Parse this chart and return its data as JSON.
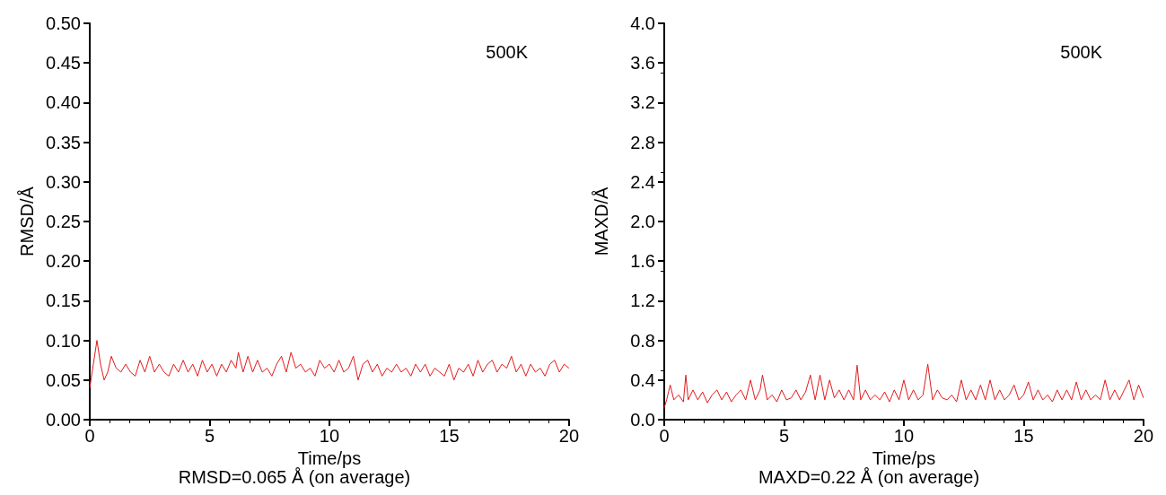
{
  "chart_data": [
    {
      "type": "line",
      "xlabel": "Time/ps",
      "ylabel": "RMSD/Å",
      "annotations": [
        "500K",
        "RMSD=0.065 Å (on average)"
      ],
      "xlim": [
        0,
        20
      ],
      "xticks": [
        0,
        5,
        10,
        15,
        20
      ],
      "ylim": [
        0,
        0.5
      ],
      "yticks": [
        {
          "value": 0,
          "label": "0.00"
        },
        {
          "value": 0.05,
          "label": "0.05"
        },
        {
          "value": 0.1,
          "label": "0.10"
        },
        {
          "value": 0.15,
          "label": "0.15"
        },
        {
          "value": 0.2,
          "label": "0.20"
        },
        {
          "value": 0.25,
          "label": "0.25"
        },
        {
          "value": 0.3,
          "label": "0.30"
        },
        {
          "value": 0.35,
          "label": "0.35"
        },
        {
          "value": 0.4,
          "label": "0.40"
        },
        {
          "value": 0.45,
          "label": "0.45"
        },
        {
          "value": 0.5,
          "label": "0.50"
        }
      ],
      "marker": "none",
      "line_style": "solid",
      "series": [
        {
          "color": "#e31a1c",
          "x": [
            0,
            0.15,
            0.3,
            0.45,
            0.6,
            0.75,
            0.9,
            1.1,
            1.3,
            1.5,
            1.7,
            1.9,
            2.1,
            2.3,
            2.5,
            2.7,
            2.9,
            3.1,
            3.3,
            3.5,
            3.7,
            3.9,
            4.1,
            4.3,
            4.5,
            4.7,
            4.9,
            5.1,
            5.3,
            5.5,
            5.7,
            5.9,
            6.1,
            6.2,
            6.4,
            6.6,
            6.8,
            7.0,
            7.2,
            7.4,
            7.6,
            7.8,
            8.0,
            8.2,
            8.4,
            8.6,
            8.8,
            9.0,
            9.2,
            9.4,
            9.6,
            9.8,
            10.0,
            10.2,
            10.4,
            10.6,
            10.8,
            11.0,
            11.2,
            11.4,
            11.6,
            11.8,
            12.0,
            12.2,
            12.4,
            12.6,
            12.8,
            13.0,
            13.2,
            13.4,
            13.6,
            13.8,
            14.0,
            14.2,
            14.4,
            14.6,
            14.8,
            15.0,
            15.2,
            15.4,
            15.6,
            15.8,
            16.0,
            16.2,
            16.4,
            16.6,
            16.8,
            17.0,
            17.2,
            17.4,
            17.6,
            17.8,
            18.0,
            18.2,
            18.4,
            18.6,
            18.8,
            19.0,
            19.2,
            19.4,
            19.6,
            19.8,
            20.0
          ],
          "values": [
            0.04,
            0.07,
            0.1,
            0.07,
            0.05,
            0.06,
            0.08,
            0.065,
            0.06,
            0.07,
            0.06,
            0.055,
            0.075,
            0.06,
            0.08,
            0.06,
            0.07,
            0.06,
            0.055,
            0.07,
            0.06,
            0.075,
            0.06,
            0.07,
            0.055,
            0.075,
            0.06,
            0.07,
            0.055,
            0.07,
            0.06,
            0.075,
            0.065,
            0.085,
            0.06,
            0.08,
            0.06,
            0.075,
            0.06,
            0.065,
            0.055,
            0.07,
            0.08,
            0.06,
            0.085,
            0.065,
            0.07,
            0.06,
            0.065,
            0.055,
            0.075,
            0.065,
            0.07,
            0.06,
            0.075,
            0.06,
            0.065,
            0.08,
            0.05,
            0.07,
            0.075,
            0.06,
            0.07,
            0.055,
            0.065,
            0.06,
            0.07,
            0.06,
            0.065,
            0.055,
            0.07,
            0.06,
            0.07,
            0.055,
            0.065,
            0.06,
            0.055,
            0.07,
            0.05,
            0.065,
            0.06,
            0.07,
            0.055,
            0.075,
            0.06,
            0.07,
            0.075,
            0.06,
            0.07,
            0.065,
            0.08,
            0.06,
            0.07,
            0.055,
            0.07,
            0.06,
            0.065,
            0.055,
            0.07,
            0.075,
            0.06,
            0.07,
            0.065
          ]
        }
      ]
    },
    {
      "type": "line",
      "xlabel": "Time/ps",
      "ylabel": "MAXD/Å",
      "annotations": [
        "500K",
        "MAXD=0.22 Å (on average)"
      ],
      "xlim": [
        0,
        20
      ],
      "xticks": [
        0,
        5,
        10,
        15,
        20
      ],
      "ylim": [
        0,
        4
      ],
      "yticks": [
        {
          "value": 0,
          "label": "0.0"
        },
        {
          "value": 0.4,
          "label": "0.4"
        },
        {
          "value": 0.8,
          "label": "0.8"
        },
        {
          "value": 1.2,
          "label": "1.2"
        },
        {
          "value": 1.6,
          "label": "1.6"
        },
        {
          "value": 2,
          "label": "2.0"
        },
        {
          "value": 2.4,
          "label": "2.4"
        },
        {
          "value": 2.8,
          "label": "2.8"
        },
        {
          "value": 3.2,
          "label": "3.2"
        },
        {
          "value": 3.6,
          "label": "3.6"
        },
        {
          "value": 4,
          "label": "4.0"
        }
      ],
      "marker": "none",
      "line_style": "solid",
      "series": [
        {
          "color": "#e31a1c",
          "x": [
            0,
            0.1,
            0.25,
            0.4,
            0.6,
            0.8,
            0.9,
            1.0,
            1.2,
            1.4,
            1.6,
            1.8,
            2.0,
            2.2,
            2.4,
            2.6,
            2.8,
            3.0,
            3.2,
            3.4,
            3.6,
            3.8,
            4.0,
            4.1,
            4.3,
            4.5,
            4.7,
            4.9,
            5.1,
            5.3,
            5.5,
            5.7,
            5.9,
            6.1,
            6.3,
            6.5,
            6.7,
            6.9,
            7.1,
            7.3,
            7.5,
            7.7,
            7.9,
            8.05,
            8.2,
            8.4,
            8.6,
            8.8,
            9.0,
            9.2,
            9.4,
            9.6,
            9.8,
            10.0,
            10.2,
            10.4,
            10.6,
            10.8,
            11.0,
            11.2,
            11.4,
            11.6,
            11.8,
            12.0,
            12.2,
            12.4,
            12.6,
            12.8,
            13.0,
            13.2,
            13.4,
            13.6,
            13.8,
            14.0,
            14.2,
            14.4,
            14.6,
            14.8,
            15.0,
            15.2,
            15.4,
            15.6,
            15.8,
            16.0,
            16.2,
            16.4,
            16.6,
            16.8,
            17.0,
            17.2,
            17.4,
            17.6,
            17.8,
            18.0,
            18.2,
            18.4,
            18.6,
            18.8,
            19.0,
            19.2,
            19.4,
            19.6,
            19.8,
            20.0
          ],
          "values": [
            0.12,
            0.2,
            0.35,
            0.2,
            0.25,
            0.18,
            0.45,
            0.2,
            0.3,
            0.2,
            0.28,
            0.17,
            0.25,
            0.3,
            0.2,
            0.28,
            0.18,
            0.25,
            0.3,
            0.2,
            0.4,
            0.2,
            0.3,
            0.45,
            0.2,
            0.25,
            0.18,
            0.3,
            0.2,
            0.22,
            0.3,
            0.2,
            0.28,
            0.45,
            0.2,
            0.45,
            0.2,
            0.4,
            0.22,
            0.3,
            0.2,
            0.3,
            0.2,
            0.55,
            0.2,
            0.3,
            0.2,
            0.25,
            0.2,
            0.28,
            0.18,
            0.3,
            0.2,
            0.4,
            0.2,
            0.3,
            0.2,
            0.25,
            0.56,
            0.2,
            0.3,
            0.22,
            0.2,
            0.25,
            0.18,
            0.4,
            0.2,
            0.3,
            0.2,
            0.35,
            0.2,
            0.4,
            0.2,
            0.3,
            0.2,
            0.25,
            0.35,
            0.2,
            0.25,
            0.38,
            0.2,
            0.3,
            0.2,
            0.25,
            0.18,
            0.3,
            0.2,
            0.3,
            0.2,
            0.38,
            0.2,
            0.3,
            0.2,
            0.25,
            0.2,
            0.4,
            0.2,
            0.3,
            0.2,
            0.3,
            0.4,
            0.2,
            0.35,
            0.22
          ]
        }
      ]
    }
  ]
}
